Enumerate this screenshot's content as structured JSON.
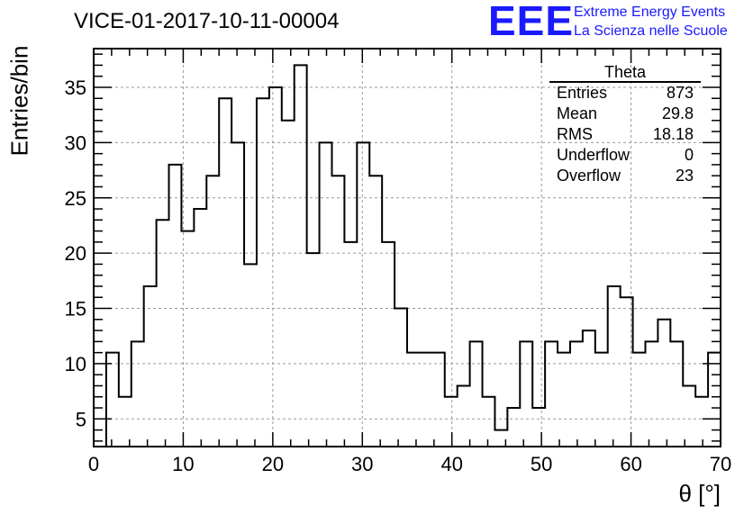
{
  "header": {
    "title": "VICE-01-2017-10-11-00004",
    "logo_text": "EEE",
    "logo_line1": "Extreme Energy Events",
    "logo_line2": "La Scienza nelle Scuole"
  },
  "stats": {
    "name": "Theta",
    "rows": [
      {
        "label": "Entries",
        "value": "873"
      },
      {
        "label": "Mean",
        "value": "29.8"
      },
      {
        "label": "RMS",
        "value": "18.18"
      },
      {
        "label": "Underflow",
        "value": "0"
      },
      {
        "label": "Overflow",
        "value": "23"
      }
    ]
  },
  "chart_data": {
    "type": "bar",
    "histogram": true,
    "xlabel": "θ [°]",
    "ylabel": "Entries/bin",
    "xlim": [
      0,
      70
    ],
    "ylim": [
      2.5,
      38.5
    ],
    "grid": true,
    "bin_width": 1.4,
    "x_start": 1.4,
    "values": [
      11,
      7,
      12,
      17,
      23,
      28,
      22,
      24,
      27,
      34,
      30,
      19,
      34,
      35,
      32,
      37,
      20,
      30,
      27,
      21,
      30,
      27,
      21,
      15,
      11,
      11,
      11,
      7,
      8,
      12,
      7,
      4,
      6,
      12,
      6,
      12,
      11,
      12,
      13,
      11,
      17,
      16,
      11,
      12,
      14,
      12,
      8,
      7,
      11
    ],
    "xticks": [
      0,
      10,
      20,
      30,
      40,
      50,
      60,
      70
    ],
    "yticks": [
      5,
      10,
      15,
      20,
      25,
      30,
      35
    ]
  }
}
